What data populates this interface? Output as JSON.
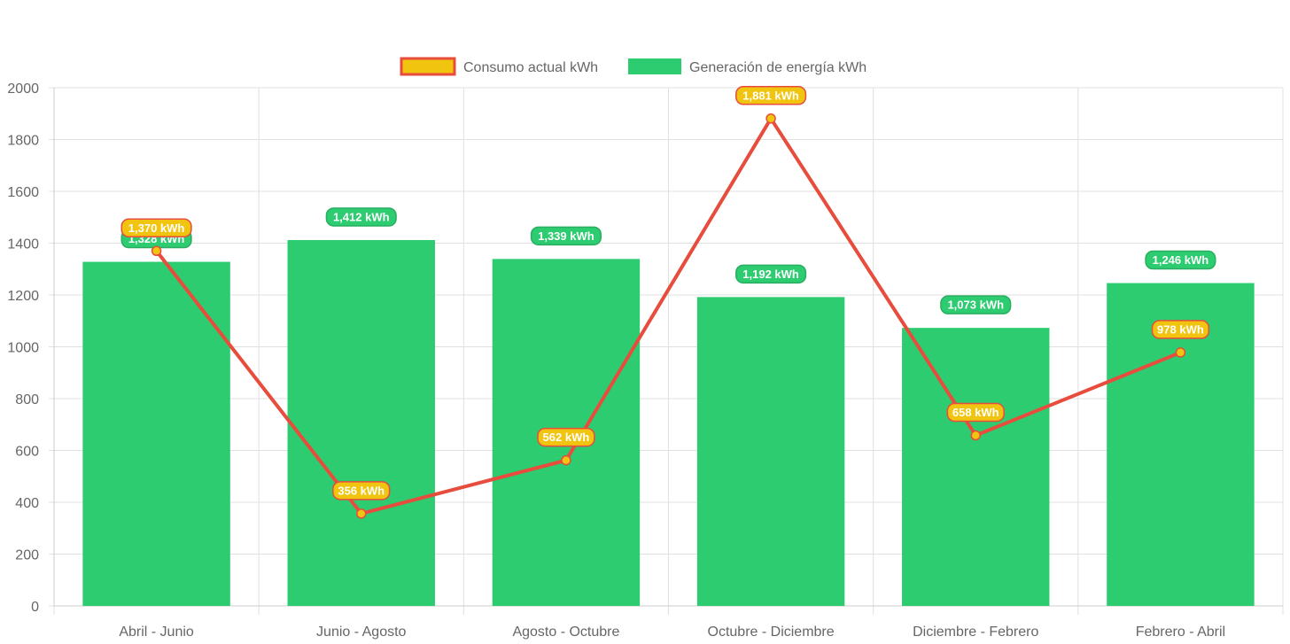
{
  "chart_data": {
    "type": "bar",
    "title": "",
    "xlabel": "",
    "ylabel": "",
    "categories": [
      "Abril - Junio",
      "Junio - Agosto",
      "Agosto - Octubre",
      "Octubre - Diciembre",
      "Diciembre - Febrero",
      "Febrero - Abril"
    ],
    "ylim": [
      0,
      2000
    ],
    "yticks": [
      "0",
      "200",
      "400",
      "600",
      "800",
      "1000",
      "1200",
      "1400",
      "1600",
      "1800",
      "2000"
    ],
    "grid": true,
    "legend_position": "top",
    "series": [
      {
        "name": "Generación de energía kWh",
        "type": "bar",
        "values": [
          1328,
          1412,
          1339,
          1192,
          1073,
          1246
        ],
        "labels": [
          "1,328 kWh",
          "1,412 kWh",
          "1,339 kWh",
          "1,192 kWh",
          "1,073 kWh",
          "1,246 kWh"
        ],
        "color": "#2ecc71"
      },
      {
        "name": "Consumo actual kWh",
        "type": "line",
        "values": [
          1370,
          356,
          562,
          1881,
          658,
          978
        ],
        "labels": [
          "1,370 kWh",
          "356 kWh",
          "562 kWh",
          "1,881 kWh",
          "658 kWh",
          "978 kWh"
        ],
        "color": "#e74c3c",
        "fill_color": "#f1c40f"
      }
    ]
  }
}
